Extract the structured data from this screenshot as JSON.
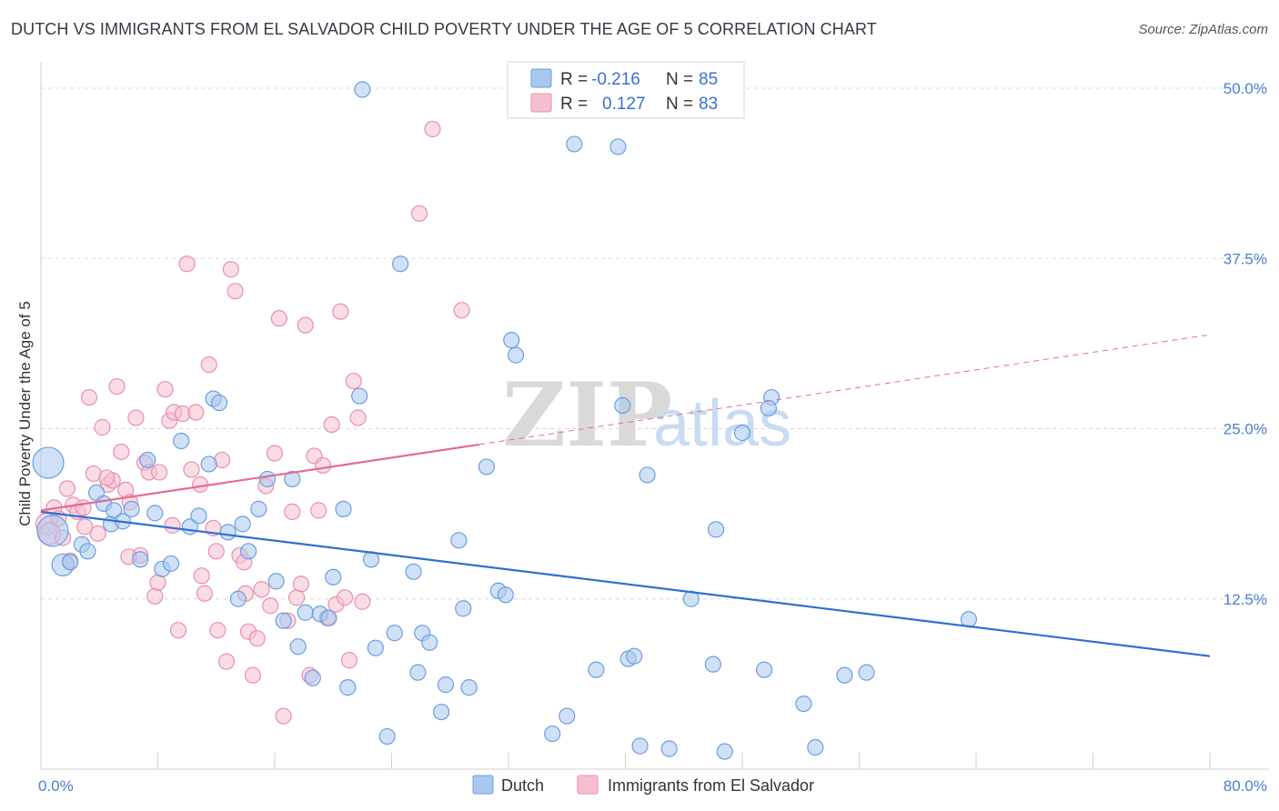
{
  "title": "DUTCH VS IMMIGRANTS FROM EL SALVADOR CHILD POVERTY UNDER THE AGE OF 5 CORRELATION CHART",
  "source": "Source: ZipAtlas.com",
  "watermark": {
    "zip": "ZIP",
    "atlas": "atlas"
  },
  "colors": {
    "dutch_fill": "#a9c8f0",
    "dutch_stroke": "#6b9ee0",
    "dutch_line": "#2f6fd0",
    "salv_fill": "#f6bfd0",
    "salv_stroke": "#e98fae",
    "salv_line": "#e46b96",
    "grid": "#d8d8d8",
    "tick": "#4a7fd0"
  },
  "legend": {
    "rows": [
      {
        "r_label": "R =",
        "r_value": "-0.216",
        "n_label": "N =",
        "n_value": "85"
      },
      {
        "r_label": "R =",
        "r_value": "0.127",
        "n_label": "N =",
        "n_value": "83"
      }
    ]
  },
  "bottom_legend": [
    "Dutch",
    "Immigrants from El Salvador"
  ],
  "chart_data": {
    "type": "scatter",
    "title": "DUTCH VS IMMIGRANTS FROM EL SALVADOR CHILD POVERTY UNDER THE AGE OF 5 CORRELATION CHART",
    "xlabel": "",
    "ylabel": "Child Poverty Under the Age of 5",
    "xlim": [
      0,
      80
    ],
    "ylim": [
      0,
      50
    ],
    "x_tick_labels": [
      "0.0%",
      "80.0%"
    ],
    "y_ticks": [
      12.5,
      25.0,
      37.5,
      50.0
    ],
    "y_tick_labels": [
      "12.5%",
      "25.0%",
      "37.5%",
      "50.0%"
    ],
    "grid": true,
    "legend_position": "top-center",
    "series": [
      {
        "name": "Dutch",
        "r": -0.216,
        "n": 85,
        "trend": {
          "x0": 0,
          "y0": 18.9,
          "x1": 80,
          "y1": 8.3,
          "dashed_from": null
        },
        "points": [
          [
            0.5,
            22.5,
            3
          ],
          [
            0.8,
            17.5,
            3
          ],
          [
            1.5,
            15.0,
            2
          ],
          [
            2.0,
            15.2,
            1
          ],
          [
            2.8,
            16.5,
            1
          ],
          [
            3.2,
            16.0,
            1
          ],
          [
            3.8,
            20.3,
            1
          ],
          [
            4.3,
            19.5,
            1
          ],
          [
            4.8,
            18.0,
            1
          ],
          [
            5.0,
            19.0,
            1
          ],
          [
            5.6,
            18.2,
            1
          ],
          [
            6.2,
            19.1,
            1
          ],
          [
            6.8,
            15.4,
            1
          ],
          [
            7.3,
            22.7,
            1
          ],
          [
            7.8,
            18.8,
            1
          ],
          [
            8.3,
            14.7,
            1
          ],
          [
            8.9,
            15.1,
            1
          ],
          [
            9.6,
            24.1,
            1
          ],
          [
            10.2,
            17.8,
            1
          ],
          [
            10.8,
            18.6,
            1
          ],
          [
            11.5,
            22.4,
            1
          ],
          [
            11.8,
            27.2,
            1
          ],
          [
            12.2,
            26.9,
            1
          ],
          [
            12.8,
            17.4,
            1
          ],
          [
            13.5,
            12.5,
            1
          ],
          [
            13.8,
            18.0,
            1
          ],
          [
            14.2,
            16.0,
            1
          ],
          [
            14.9,
            19.1,
            1
          ],
          [
            15.5,
            21.3,
            1
          ],
          [
            16.1,
            13.8,
            1
          ],
          [
            16.6,
            10.9,
            1
          ],
          [
            17.2,
            21.3,
            1
          ],
          [
            17.6,
            9.0,
            1
          ],
          [
            18.1,
            11.5,
            1
          ],
          [
            18.6,
            6.7,
            1
          ],
          [
            19.1,
            11.4,
            1
          ],
          [
            19.7,
            11.1,
            1
          ],
          [
            20.0,
            14.1,
            1
          ],
          [
            20.7,
            19.1,
            1
          ],
          [
            21.0,
            6.0,
            1
          ],
          [
            21.8,
            27.4,
            1
          ],
          [
            22.0,
            49.9,
            1
          ],
          [
            22.6,
            15.4,
            1
          ],
          [
            22.9,
            8.9,
            1
          ],
          [
            23.7,
            2.4,
            1
          ],
          [
            24.2,
            10.0,
            1
          ],
          [
            24.6,
            37.1,
            1
          ],
          [
            25.5,
            14.5,
            1
          ],
          [
            25.8,
            7.1,
            1
          ],
          [
            26.1,
            10.0,
            1
          ],
          [
            26.6,
            9.3,
            1
          ],
          [
            27.4,
            4.2,
            1
          ],
          [
            27.7,
            6.2,
            1
          ],
          [
            28.6,
            16.8,
            1
          ],
          [
            28.9,
            11.8,
            1
          ],
          [
            29.3,
            6.0,
            1
          ],
          [
            30.5,
            22.2,
            1
          ],
          [
            31.3,
            13.1,
            1
          ],
          [
            31.8,
            12.8,
            1
          ],
          [
            32.2,
            31.5,
            1
          ],
          [
            32.5,
            30.4,
            1
          ],
          [
            35.0,
            2.6,
            1
          ],
          [
            36.0,
            3.9,
            1
          ],
          [
            36.5,
            45.9,
            1
          ],
          [
            39.5,
            45.7,
            1
          ],
          [
            39.8,
            26.7,
            1
          ],
          [
            40.2,
            8.1,
            1
          ],
          [
            40.6,
            8.3,
            1
          ],
          [
            41.0,
            1.7,
            1
          ],
          [
            41.5,
            21.6,
            1
          ],
          [
            43.0,
            1.5,
            1
          ],
          [
            44.5,
            12.5,
            1
          ],
          [
            46.0,
            7.7,
            1
          ],
          [
            46.2,
            17.6,
            1
          ],
          [
            46.8,
            1.3,
            1
          ],
          [
            48.0,
            24.7,
            1
          ],
          [
            49.5,
            7.3,
            1
          ],
          [
            50.0,
            27.3,
            1
          ],
          [
            52.2,
            4.8,
            1
          ],
          [
            53.0,
            1.6,
            1
          ],
          [
            55.0,
            6.9,
            1
          ],
          [
            56.5,
            7.1,
            1
          ],
          [
            63.5,
            11.0,
            1
          ],
          [
            49.8,
            26.5,
            1
          ],
          [
            38.0,
            7.3,
            1
          ]
        ]
      },
      {
        "name": "Immigrants from El Salvador",
        "r": 0.127,
        "n": 83,
        "trend": {
          "x0": 0,
          "y0": 19.0,
          "x1": 80,
          "y1": 31.9,
          "dashed_from": 30
        },
        "points": [
          [
            0.4,
            18.0,
            2
          ],
          [
            0.6,
            17.3,
            2
          ],
          [
            0.9,
            19.2,
            1
          ],
          [
            1.2,
            18.4,
            1
          ],
          [
            1.5,
            17.0,
            1
          ],
          [
            1.8,
            20.6,
            1
          ],
          [
            2.2,
            19.4,
            1
          ],
          [
            2.5,
            18.9,
            1
          ],
          [
            2.9,
            19.2,
            1
          ],
          [
            3.3,
            27.3,
            1
          ],
          [
            3.6,
            21.7,
            1
          ],
          [
            3.9,
            17.3,
            1
          ],
          [
            4.2,
            25.1,
            1
          ],
          [
            4.6,
            20.9,
            1
          ],
          [
            4.9,
            21.2,
            1
          ],
          [
            5.2,
            28.1,
            1
          ],
          [
            5.5,
            23.3,
            1
          ],
          [
            5.8,
            20.5,
            1
          ],
          [
            6.1,
            19.6,
            1
          ],
          [
            6.5,
            25.8,
            1
          ],
          [
            6.8,
            15.7,
            1
          ],
          [
            7.1,
            22.5,
            1
          ],
          [
            7.4,
            21.8,
            1
          ],
          [
            7.8,
            12.7,
            1
          ],
          [
            8.1,
            21.8,
            1
          ],
          [
            8.5,
            27.9,
            1
          ],
          [
            8.8,
            25.6,
            1
          ],
          [
            9.1,
            26.2,
            1
          ],
          [
            9.4,
            10.2,
            1
          ],
          [
            9.7,
            26.1,
            1
          ],
          [
            10.0,
            37.1,
            1
          ],
          [
            10.3,
            22.0,
            1
          ],
          [
            10.6,
            26.2,
            1
          ],
          [
            10.9,
            20.9,
            1
          ],
          [
            11.2,
            12.9,
            1
          ],
          [
            11.5,
            29.7,
            1
          ],
          [
            11.8,
            17.7,
            1
          ],
          [
            12.1,
            10.2,
            1
          ],
          [
            12.4,
            22.7,
            1
          ],
          [
            12.7,
            7.9,
            1
          ],
          [
            13.0,
            36.7,
            1
          ],
          [
            13.3,
            35.1,
            1
          ],
          [
            13.6,
            15.7,
            1
          ],
          [
            13.9,
            15.2,
            1
          ],
          [
            14.2,
            10.1,
            1
          ],
          [
            14.5,
            6.9,
            1
          ],
          [
            14.8,
            9.6,
            1
          ],
          [
            15.1,
            13.2,
            1
          ],
          [
            15.4,
            20.8,
            1
          ],
          [
            15.7,
            12.0,
            1
          ],
          [
            16.0,
            23.2,
            1
          ],
          [
            16.3,
            33.1,
            1
          ],
          [
            16.6,
            3.9,
            1
          ],
          [
            16.9,
            10.9,
            1
          ],
          [
            17.2,
            18.9,
            1
          ],
          [
            17.5,
            12.6,
            1
          ],
          [
            17.8,
            13.6,
            1
          ],
          [
            18.1,
            32.6,
            1
          ],
          [
            18.4,
            6.9,
            1
          ],
          [
            18.7,
            23.0,
            1
          ],
          [
            19.0,
            19.0,
            1
          ],
          [
            19.3,
            22.3,
            1
          ],
          [
            19.6,
            11.1,
            1
          ],
          [
            19.9,
            25.3,
            1
          ],
          [
            20.2,
            12.1,
            1
          ],
          [
            20.5,
            33.6,
            1
          ],
          [
            20.8,
            12.6,
            1
          ],
          [
            21.1,
            8.0,
            1
          ],
          [
            21.4,
            28.5,
            1
          ],
          [
            21.7,
            25.8,
            1
          ],
          [
            22.0,
            12.3,
            1
          ],
          [
            25.9,
            40.8,
            1
          ],
          [
            26.8,
            47.0,
            1
          ],
          [
            28.8,
            33.7,
            1
          ],
          [
            4.5,
            21.4,
            1
          ],
          [
            6.0,
            15.6,
            1
          ],
          [
            9.0,
            17.9,
            1
          ],
          [
            12.0,
            16.0,
            1
          ],
          [
            14.0,
            12.9,
            1
          ],
          [
            2.0,
            15.3,
            1
          ],
          [
            3.0,
            17.8,
            1
          ],
          [
            8.0,
            13.7,
            1
          ],
          [
            11.0,
            14.2,
            1
          ]
        ]
      }
    ]
  }
}
